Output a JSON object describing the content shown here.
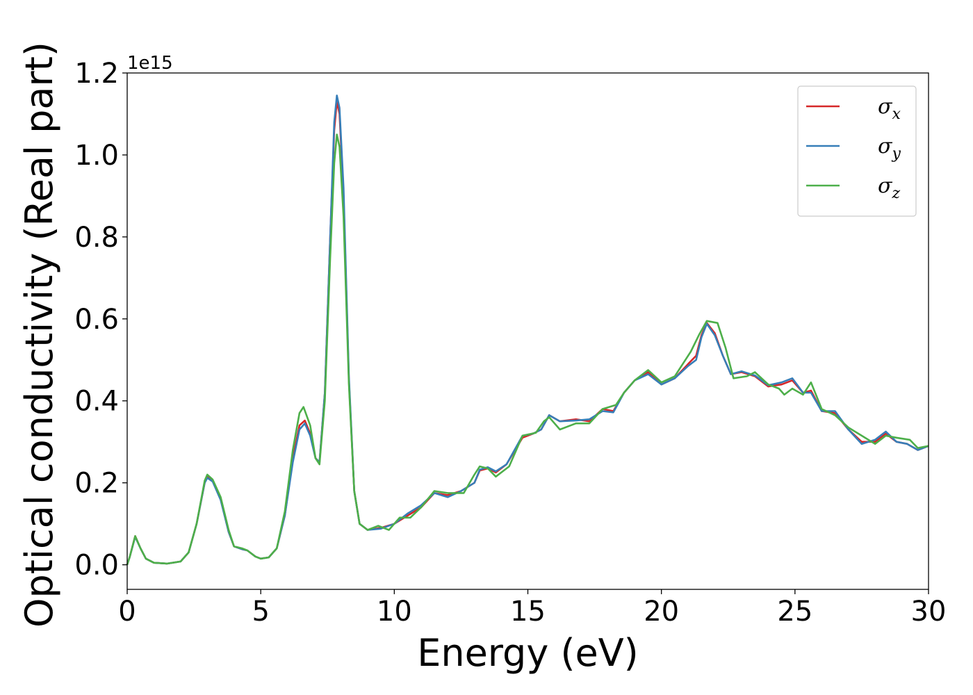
{
  "chart_data": {
    "type": "line",
    "xlabel": "Energy (eV)",
    "ylabel": "Optical conductivity (Real part)",
    "y_offset_label": "1e15",
    "xlim": [
      0,
      30
    ],
    "ylim": [
      -0.06,
      1.2
    ],
    "x_ticks": [
      0,
      5,
      10,
      15,
      20,
      25,
      30
    ],
    "x_tick_labels": [
      "0",
      "5",
      "10",
      "15",
      "20",
      "25",
      "30"
    ],
    "y_ticks": [
      0.0,
      0.2,
      0.4,
      0.6,
      0.8,
      1.0,
      1.2
    ],
    "y_tick_labels": [
      "0.0",
      "0.2",
      "0.4",
      "0.6",
      "0.8",
      "1.0",
      "1.2"
    ],
    "grid": false,
    "legend_position": "top-right",
    "series": [
      {
        "name": "σx",
        "legend_base": "σ",
        "legend_sub": "x",
        "color": "#d62728",
        "points": [
          [
            0,
            0
          ],
          [
            0.1,
            0.02
          ],
          [
            0.3,
            0.07
          ],
          [
            0.5,
            0.04
          ],
          [
            0.7,
            0.015
          ],
          [
            1.0,
            0.005
          ],
          [
            1.5,
            0.003
          ],
          [
            2.0,
            0.008
          ],
          [
            2.3,
            0.03
          ],
          [
            2.6,
            0.1
          ],
          [
            2.9,
            0.2
          ],
          [
            3.0,
            0.215
          ],
          [
            3.2,
            0.205
          ],
          [
            3.5,
            0.16
          ],
          [
            3.8,
            0.08
          ],
          [
            4.0,
            0.045
          ],
          [
            4.3,
            0.038
          ],
          [
            4.5,
            0.035
          ],
          [
            4.8,
            0.02
          ],
          [
            5.0,
            0.015
          ],
          [
            5.3,
            0.018
          ],
          [
            5.6,
            0.04
          ],
          [
            5.9,
            0.12
          ],
          [
            6.2,
            0.26
          ],
          [
            6.45,
            0.34
          ],
          [
            6.65,
            0.352
          ],
          [
            6.85,
            0.32
          ],
          [
            7.05,
            0.26
          ],
          [
            7.2,
            0.25
          ],
          [
            7.4,
            0.42
          ],
          [
            7.6,
            0.8
          ],
          [
            7.75,
            1.06
          ],
          [
            7.85,
            1.13
          ],
          [
            7.95,
            1.1
          ],
          [
            8.1,
            0.9
          ],
          [
            8.3,
            0.45
          ],
          [
            8.5,
            0.18
          ],
          [
            8.7,
            0.1
          ],
          [
            9.0,
            0.085
          ],
          [
            9.5,
            0.09
          ],
          [
            10.0,
            0.1
          ],
          [
            10.5,
            0.12
          ],
          [
            11.0,
            0.14
          ],
          [
            11.5,
            0.175
          ],
          [
            12.0,
            0.17
          ],
          [
            12.5,
            0.18
          ],
          [
            13.0,
            0.2
          ],
          [
            13.2,
            0.23
          ],
          [
            13.5,
            0.235
          ],
          [
            13.8,
            0.225
          ],
          [
            14.2,
            0.245
          ],
          [
            14.8,
            0.31
          ],
          [
            15.2,
            0.32
          ],
          [
            15.5,
            0.33
          ],
          [
            15.8,
            0.365
          ],
          [
            16.2,
            0.35
          ],
          [
            16.8,
            0.355
          ],
          [
            17.3,
            0.35
          ],
          [
            17.8,
            0.38
          ],
          [
            18.2,
            0.375
          ],
          [
            18.6,
            0.42
          ],
          [
            19.0,
            0.45
          ],
          [
            19.5,
            0.47
          ],
          [
            20.0,
            0.44
          ],
          [
            20.5,
            0.455
          ],
          [
            21.0,
            0.49
          ],
          [
            21.3,
            0.51
          ],
          [
            21.5,
            0.56
          ],
          [
            21.7,
            0.59
          ],
          [
            22.0,
            0.565
          ],
          [
            22.3,
            0.51
          ],
          [
            22.6,
            0.465
          ],
          [
            23.0,
            0.47
          ],
          [
            23.5,
            0.46
          ],
          [
            24.0,
            0.435
          ],
          [
            24.5,
            0.44
          ],
          [
            24.9,
            0.45
          ],
          [
            25.3,
            0.42
          ],
          [
            25.6,
            0.425
          ],
          [
            26.0,
            0.375
          ],
          [
            26.5,
            0.37
          ],
          [
            27.0,
            0.33
          ],
          [
            27.5,
            0.3
          ],
          [
            28.0,
            0.3
          ],
          [
            28.4,
            0.32
          ],
          [
            28.8,
            0.3
          ],
          [
            29.2,
            0.295
          ],
          [
            29.6,
            0.28
          ],
          [
            30.0,
            0.29
          ]
        ]
      },
      {
        "name": "σy",
        "legend_base": "σ",
        "legend_sub": "y",
        "color": "#377eb8",
        "points": [
          [
            0,
            0
          ],
          [
            0.1,
            0.02
          ],
          [
            0.3,
            0.068
          ],
          [
            0.5,
            0.04
          ],
          [
            0.7,
            0.015
          ],
          [
            1.0,
            0.005
          ],
          [
            1.5,
            0.003
          ],
          [
            2.0,
            0.008
          ],
          [
            2.3,
            0.03
          ],
          [
            2.6,
            0.1
          ],
          [
            2.9,
            0.2
          ],
          [
            3.0,
            0.212
          ],
          [
            3.2,
            0.203
          ],
          [
            3.5,
            0.158
          ],
          [
            3.8,
            0.08
          ],
          [
            4.0,
            0.045
          ],
          [
            4.3,
            0.038
          ],
          [
            4.5,
            0.035
          ],
          [
            4.8,
            0.02
          ],
          [
            5.0,
            0.015
          ],
          [
            5.3,
            0.018
          ],
          [
            5.6,
            0.04
          ],
          [
            5.9,
            0.12
          ],
          [
            6.2,
            0.25
          ],
          [
            6.45,
            0.33
          ],
          [
            6.65,
            0.345
          ],
          [
            6.85,
            0.315
          ],
          [
            7.05,
            0.26
          ],
          [
            7.2,
            0.25
          ],
          [
            7.4,
            0.42
          ],
          [
            7.6,
            0.8
          ],
          [
            7.75,
            1.08
          ],
          [
            7.85,
            1.145
          ],
          [
            7.95,
            1.115
          ],
          [
            8.1,
            0.92
          ],
          [
            8.3,
            0.46
          ],
          [
            8.5,
            0.18
          ],
          [
            8.7,
            0.1
          ],
          [
            9.0,
            0.085
          ],
          [
            9.5,
            0.088
          ],
          [
            10.0,
            0.1
          ],
          [
            10.5,
            0.125
          ],
          [
            11.0,
            0.145
          ],
          [
            11.5,
            0.175
          ],
          [
            12.0,
            0.165
          ],
          [
            12.5,
            0.18
          ],
          [
            13.0,
            0.2
          ],
          [
            13.2,
            0.232
          ],
          [
            13.5,
            0.238
          ],
          [
            13.8,
            0.228
          ],
          [
            14.2,
            0.245
          ],
          [
            14.8,
            0.315
          ],
          [
            15.2,
            0.32
          ],
          [
            15.5,
            0.33
          ],
          [
            15.8,
            0.365
          ],
          [
            16.2,
            0.35
          ],
          [
            16.8,
            0.352
          ],
          [
            17.3,
            0.355
          ],
          [
            17.8,
            0.375
          ],
          [
            18.2,
            0.372
          ],
          [
            18.6,
            0.42
          ],
          [
            19.0,
            0.45
          ],
          [
            19.5,
            0.465
          ],
          [
            20.0,
            0.44
          ],
          [
            20.5,
            0.455
          ],
          [
            21.0,
            0.485
          ],
          [
            21.3,
            0.5
          ],
          [
            21.5,
            0.555
          ],
          [
            21.7,
            0.588
          ],
          [
            22.0,
            0.56
          ],
          [
            22.3,
            0.51
          ],
          [
            22.6,
            0.465
          ],
          [
            23.0,
            0.472
          ],
          [
            23.5,
            0.462
          ],
          [
            24.0,
            0.438
          ],
          [
            24.5,
            0.445
          ],
          [
            24.9,
            0.455
          ],
          [
            25.3,
            0.42
          ],
          [
            25.6,
            0.42
          ],
          [
            26.0,
            0.375
          ],
          [
            26.5,
            0.375
          ],
          [
            27.0,
            0.33
          ],
          [
            27.5,
            0.295
          ],
          [
            28.0,
            0.305
          ],
          [
            28.4,
            0.325
          ],
          [
            28.8,
            0.3
          ],
          [
            29.2,
            0.295
          ],
          [
            29.6,
            0.28
          ],
          [
            30.0,
            0.29
          ]
        ]
      },
      {
        "name": "σz",
        "legend_base": "σ",
        "legend_sub": "z",
        "color": "#4daf4a",
        "points": [
          [
            0,
            0
          ],
          [
            0.1,
            0.02
          ],
          [
            0.3,
            0.07
          ],
          [
            0.5,
            0.04
          ],
          [
            0.7,
            0.015
          ],
          [
            1.0,
            0.005
          ],
          [
            1.5,
            0.003
          ],
          [
            2.0,
            0.008
          ],
          [
            2.3,
            0.03
          ],
          [
            2.6,
            0.1
          ],
          [
            2.9,
            0.205
          ],
          [
            3.0,
            0.22
          ],
          [
            3.2,
            0.208
          ],
          [
            3.5,
            0.165
          ],
          [
            3.8,
            0.085
          ],
          [
            4.0,
            0.045
          ],
          [
            4.3,
            0.04
          ],
          [
            4.5,
            0.035
          ],
          [
            4.8,
            0.02
          ],
          [
            5.0,
            0.015
          ],
          [
            5.3,
            0.018
          ],
          [
            5.6,
            0.04
          ],
          [
            5.9,
            0.13
          ],
          [
            6.2,
            0.28
          ],
          [
            6.45,
            0.37
          ],
          [
            6.6,
            0.385
          ],
          [
            6.85,
            0.34
          ],
          [
            7.05,
            0.26
          ],
          [
            7.2,
            0.245
          ],
          [
            7.4,
            0.4
          ],
          [
            7.6,
            0.75
          ],
          [
            7.75,
            0.98
          ],
          [
            7.85,
            1.05
          ],
          [
            7.95,
            1.02
          ],
          [
            8.1,
            0.85
          ],
          [
            8.3,
            0.44
          ],
          [
            8.5,
            0.18
          ],
          [
            8.7,
            0.1
          ],
          [
            9.0,
            0.085
          ],
          [
            9.4,
            0.095
          ],
          [
            9.8,
            0.085
          ],
          [
            10.2,
            0.115
          ],
          [
            10.6,
            0.115
          ],
          [
            11.0,
            0.14
          ],
          [
            11.5,
            0.18
          ],
          [
            12.0,
            0.175
          ],
          [
            12.6,
            0.175
          ],
          [
            13.0,
            0.22
          ],
          [
            13.2,
            0.24
          ],
          [
            13.5,
            0.235
          ],
          [
            13.8,
            0.215
          ],
          [
            14.3,
            0.24
          ],
          [
            14.8,
            0.315
          ],
          [
            15.3,
            0.322
          ],
          [
            15.6,
            0.35
          ],
          [
            15.8,
            0.36
          ],
          [
            16.2,
            0.33
          ],
          [
            16.8,
            0.345
          ],
          [
            17.3,
            0.345
          ],
          [
            17.8,
            0.38
          ],
          [
            18.3,
            0.39
          ],
          [
            18.6,
            0.42
          ],
          [
            19.0,
            0.45
          ],
          [
            19.5,
            0.475
          ],
          [
            20.0,
            0.445
          ],
          [
            20.5,
            0.46
          ],
          [
            20.8,
            0.49
          ],
          [
            21.1,
            0.52
          ],
          [
            21.4,
            0.56
          ],
          [
            21.7,
            0.595
          ],
          [
            22.1,
            0.59
          ],
          [
            22.4,
            0.53
          ],
          [
            22.7,
            0.455
          ],
          [
            23.2,
            0.46
          ],
          [
            23.5,
            0.47
          ],
          [
            24.0,
            0.44
          ],
          [
            24.4,
            0.43
          ],
          [
            24.6,
            0.415
          ],
          [
            24.9,
            0.43
          ],
          [
            25.3,
            0.415
          ],
          [
            25.6,
            0.445
          ],
          [
            26.0,
            0.38
          ],
          [
            26.5,
            0.365
          ],
          [
            27.0,
            0.335
          ],
          [
            27.5,
            0.315
          ],
          [
            28.0,
            0.295
          ],
          [
            28.4,
            0.315
          ],
          [
            28.8,
            0.31
          ],
          [
            29.3,
            0.305
          ],
          [
            29.6,
            0.285
          ],
          [
            30.0,
            0.29
          ]
        ]
      }
    ]
  }
}
